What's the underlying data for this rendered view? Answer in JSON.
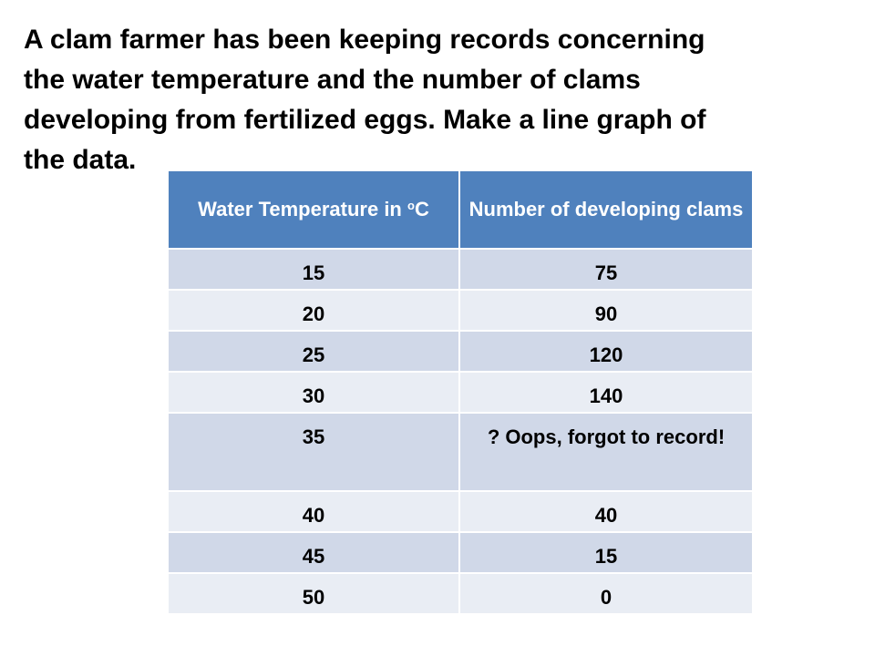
{
  "prompt": {
    "text": "A clam farmer has been keeping records concerning\nthe water temperature and the number of clams\ndeveloping from fertilized eggs. Make a line graph of\nthe data."
  },
  "table": {
    "headers": {
      "temperature_main": "Water Temperature in",
      "temperature_degree": "o",
      "temperature_unit": "C",
      "clams": "Number of developing clams"
    },
    "rows": [
      {
        "temperature": "15",
        "clams": "75"
      },
      {
        "temperature": "20",
        "clams": "90"
      },
      {
        "temperature": "25",
        "clams": "120"
      },
      {
        "temperature": "30",
        "clams": "140"
      },
      {
        "temperature": "35",
        "clams": "? Oops, forgot to record!"
      },
      {
        "temperature": "40",
        "clams": "40"
      },
      {
        "temperature": "45",
        "clams": "15"
      },
      {
        "temperature": "50",
        "clams": "0"
      }
    ],
    "colors": {
      "header": "#4f81bd",
      "band_dark": "#d0d8e8",
      "band_light": "#e9edf4"
    }
  }
}
